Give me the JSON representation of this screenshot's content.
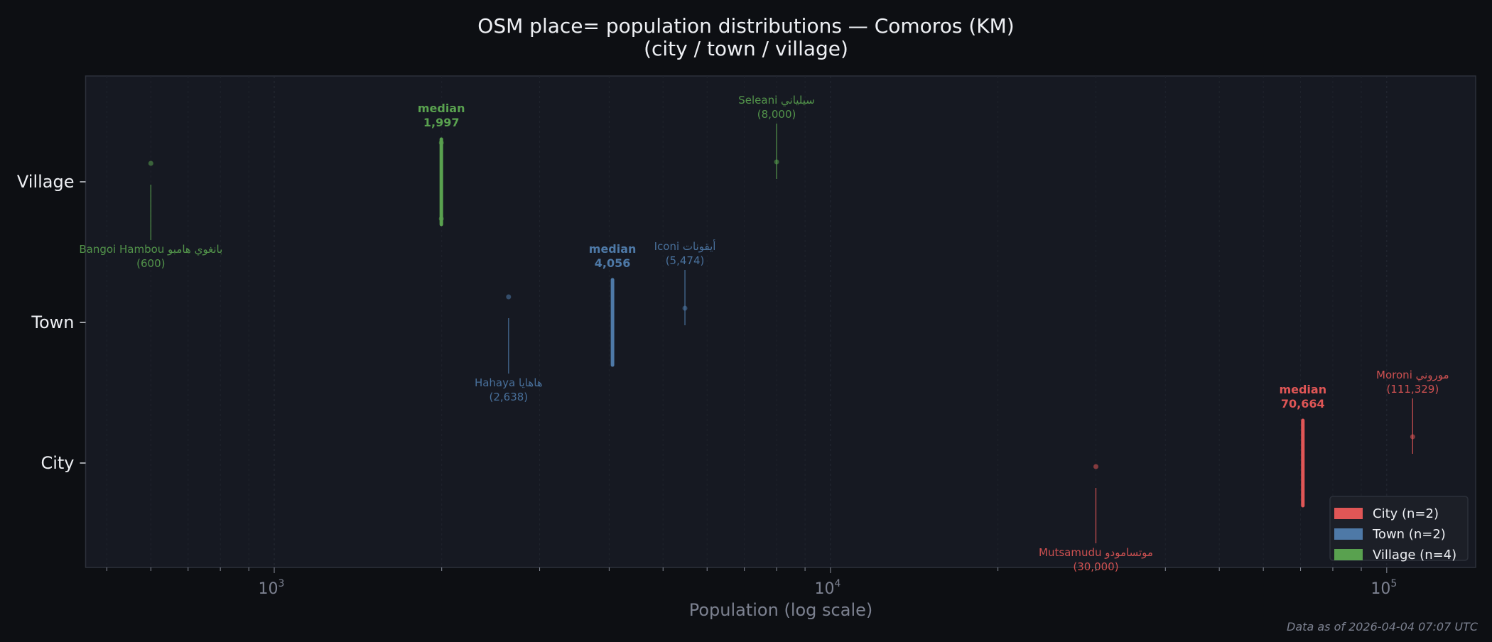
{
  "chart_data": {
    "type": "strip",
    "title": "OSM place= population distributions — Comoros (KM)",
    "subtitle": "(city / town / village)",
    "xlabel": "Population (log scale)",
    "xscale": "log",
    "xlim": [
      458,
      144500
    ],
    "xticks": [
      {
        "base": "10",
        "exp": "3",
        "value": 1000
      },
      {
        "base": "10",
        "exp": "4",
        "value": 10000
      },
      {
        "base": "10",
        "exp": "5",
        "value": 100000
      }
    ],
    "categories": [
      "City",
      "Town",
      "Village"
    ],
    "grid": true,
    "legend_position": "bottom-right",
    "median_label": "median",
    "series": [
      {
        "name": "City",
        "legend": "City  (n=2)",
        "color": "#e05656",
        "median": 70664,
        "median_text": "70,664",
        "points": [
          30000,
          111329
        ],
        "labeled": [
          {
            "name": "Mutsamudu موتسامودو",
            "value": 30000,
            "value_text": "(30,000)",
            "position": "below"
          },
          {
            "name": "Moroni موروني",
            "value": 111329,
            "value_text": "(111,329)",
            "position": "above"
          }
        ]
      },
      {
        "name": "Town",
        "legend": "Town  (n=2)",
        "color": "#4e79a7",
        "median": 4056,
        "median_text": "4,056",
        "points": [
          2638,
          5474
        ],
        "labeled": [
          {
            "name": "Hahaya هاهايا",
            "value": 2638,
            "value_text": "(2,638)",
            "position": "below"
          },
          {
            "name": "Iconi أيقونات",
            "value": 5474,
            "value_text": "(5,474)",
            "position": "above"
          }
        ]
      },
      {
        "name": "Village",
        "legend": "Village  (n=4)",
        "color": "#59a14f",
        "median": 1997,
        "median_text": "1,997",
        "points": [
          600,
          1997,
          1997,
          8000
        ],
        "labeled": [
          {
            "name": "Bangoi Hambou بانغوي هامبو",
            "value": 600,
            "value_text": "(600)",
            "position": "below"
          },
          {
            "name": "Seleani سيلياني",
            "value": 8000,
            "value_text": "(8,000)",
            "position": "above"
          }
        ]
      }
    ]
  },
  "footer": "Data as of 2026-04-04 07:07 UTC"
}
